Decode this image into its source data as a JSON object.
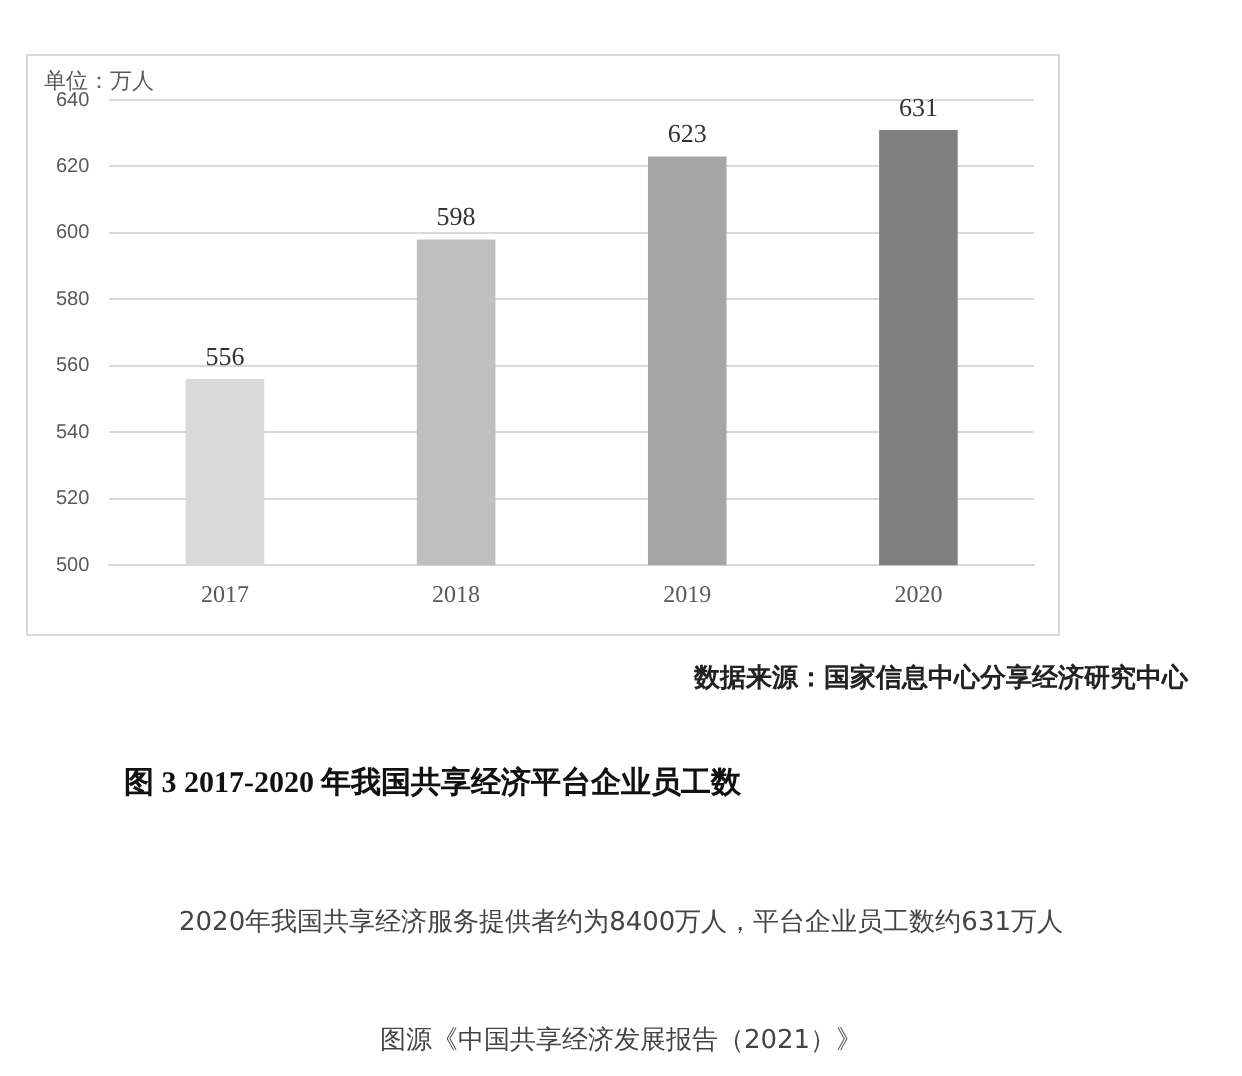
{
  "chart_data": {
    "type": "bar",
    "title": "图 3   2017-2020 年我国共享经济平台企业员工数",
    "ylabel": "单位：万人",
    "categories": [
      "2017",
      "2018",
      "2019",
      "2020"
    ],
    "values": [
      556,
      598,
      623,
      631
    ],
    "colors": [
      "#d9d9d9",
      "#bfbfbf",
      "#a6a6a6",
      "#7f7f7f"
    ],
    "ylim": [
      500,
      640
    ],
    "yticks": [
      500,
      520,
      540,
      560,
      580,
      600,
      620,
      640
    ],
    "grid": "y",
    "data_labels": true,
    "legend": false,
    "annotations": [
      "数据来源：国家信息中心分享经济研究中心",
      "2020年我国共享经济服务提供者约为8400万人，平台企业员工数约631万人",
      "图源《中国共享经济发展报告（2021）》"
    ]
  }
}
